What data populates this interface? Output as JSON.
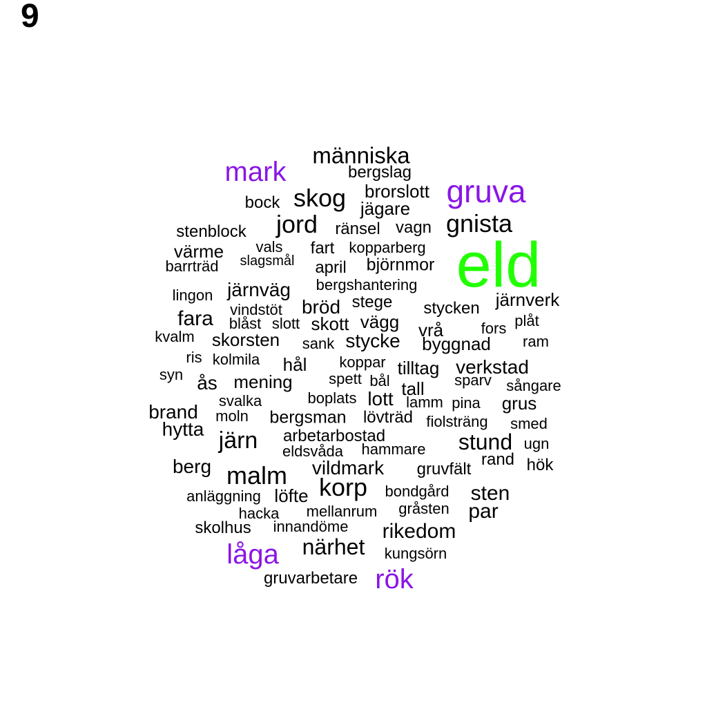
{
  "panel_label": "9",
  "colors": {
    "large": "#22ff00",
    "medium": "#8a16e6",
    "small": "#000000"
  },
  "words": [
    {
      "text": "eld",
      "weight": 5
    },
    {
      "text": "gruva",
      "weight": 4
    },
    {
      "text": "mark",
      "weight": 4
    },
    {
      "text": "låga",
      "weight": 4
    },
    {
      "text": "rök",
      "weight": 4
    },
    {
      "text": "människa",
      "weight": 3
    },
    {
      "text": "skog",
      "weight": 3
    },
    {
      "text": "jord",
      "weight": 3
    },
    {
      "text": "gnista",
      "weight": 3
    },
    {
      "text": "malm",
      "weight": 3
    },
    {
      "text": "korp",
      "weight": 3
    },
    {
      "text": "järn",
      "weight": 3
    },
    {
      "text": "stund",
      "weight": 3
    },
    {
      "text": "närhet",
      "weight": 3
    },
    {
      "text": "rikedom",
      "weight": 2
    },
    {
      "text": "sten",
      "weight": 2
    },
    {
      "text": "par",
      "weight": 2
    },
    {
      "text": "vildmark",
      "weight": 2
    },
    {
      "text": "fara",
      "weight": 2
    },
    {
      "text": "ås",
      "weight": 2
    },
    {
      "text": "stycke",
      "weight": 2
    },
    {
      "text": "verkstad",
      "weight": 2
    },
    {
      "text": "järnväg",
      "weight": 2
    },
    {
      "text": "bröd",
      "weight": 2
    },
    {
      "text": "brand",
      "weight": 2
    },
    {
      "text": "hytta",
      "weight": 2
    },
    {
      "text": "berg",
      "weight": 2
    },
    {
      "text": "lott",
      "weight": 2
    },
    {
      "text": "brorslott",
      "weight": 2
    },
    {
      "text": "jägare",
      "weight": 2
    },
    {
      "text": "värme",
      "weight": 2
    },
    {
      "text": "stenblock",
      "weight": 2
    },
    {
      "text": "skott",
      "weight": 2
    },
    {
      "text": "vägg",
      "weight": 2
    },
    {
      "text": "byggnad",
      "weight": 2
    },
    {
      "text": "skorsten",
      "weight": 2
    },
    {
      "text": "mening",
      "weight": 2
    },
    {
      "text": "bergsman",
      "weight": 2
    },
    {
      "text": "järnverk",
      "weight": 2
    },
    {
      "text": "björnmor",
      "weight": 2
    },
    {
      "text": "stycken",
      "weight": 2
    },
    {
      "text": "vrå",
      "weight": 2
    },
    {
      "text": "tall",
      "weight": 2
    },
    {
      "text": "hål",
      "weight": 2
    },
    {
      "text": "grus",
      "weight": 2
    },
    {
      "text": "löfte",
      "weight": 2
    },
    {
      "text": "tilltag",
      "weight": 2
    },
    {
      "text": "bergslag",
      "weight": 1
    },
    {
      "text": "bock",
      "weight": 1
    },
    {
      "text": "ränsel",
      "weight": 1
    },
    {
      "text": "vagn",
      "weight": 1
    },
    {
      "text": "vals",
      "weight": 1
    },
    {
      "text": "fart",
      "weight": 1
    },
    {
      "text": "kopparberg",
      "weight": 1
    },
    {
      "text": "barrträd",
      "weight": 1
    },
    {
      "text": "slagsmål",
      "weight": 1
    },
    {
      "text": "april",
      "weight": 1
    },
    {
      "text": "bergshantering",
      "weight": 1
    },
    {
      "text": "lingon",
      "weight": 1
    },
    {
      "text": "stege",
      "weight": 1
    },
    {
      "text": "vindstöt",
      "weight": 1
    },
    {
      "text": "blåst",
      "weight": 1
    },
    {
      "text": "slott",
      "weight": 1
    },
    {
      "text": "plåt",
      "weight": 1
    },
    {
      "text": "fors",
      "weight": 1
    },
    {
      "text": "kvalm",
      "weight": 1
    },
    {
      "text": "sank",
      "weight": 1
    },
    {
      "text": "ram",
      "weight": 1
    },
    {
      "text": "ris",
      "weight": 1
    },
    {
      "text": "kolmila",
      "weight": 1
    },
    {
      "text": "koppar",
      "weight": 1
    },
    {
      "text": "syn",
      "weight": 1
    },
    {
      "text": "spett",
      "weight": 1
    },
    {
      "text": "bål",
      "weight": 1
    },
    {
      "text": "sparv",
      "weight": 1
    },
    {
      "text": "sångare",
      "weight": 1
    },
    {
      "text": "svalka",
      "weight": 1
    },
    {
      "text": "boplats",
      "weight": 1
    },
    {
      "text": "lamm",
      "weight": 1
    },
    {
      "text": "pina",
      "weight": 1
    },
    {
      "text": "moln",
      "weight": 1
    },
    {
      "text": "lövträd",
      "weight": 1
    },
    {
      "text": "fiolsträng",
      "weight": 1
    },
    {
      "text": "smed",
      "weight": 1
    },
    {
      "text": "arbetarbostad",
      "weight": 1
    },
    {
      "text": "ugn",
      "weight": 1
    },
    {
      "text": "eldsvåda",
      "weight": 1
    },
    {
      "text": "hammare",
      "weight": 1
    },
    {
      "text": "rand",
      "weight": 1
    },
    {
      "text": "hök",
      "weight": 1
    },
    {
      "text": "gruvfält",
      "weight": 1
    },
    {
      "text": "anläggning",
      "weight": 1
    },
    {
      "text": "bondgård",
      "weight": 1
    },
    {
      "text": "hacka",
      "weight": 1
    },
    {
      "text": "mellanrum",
      "weight": 1
    },
    {
      "text": "gråsten",
      "weight": 1
    },
    {
      "text": "skolhus",
      "weight": 1
    },
    {
      "text": "innandöme",
      "weight": 1
    },
    {
      "text": "kungsörn",
      "weight": 1
    },
    {
      "text": "gruvarbetare",
      "weight": 1
    }
  ]
}
